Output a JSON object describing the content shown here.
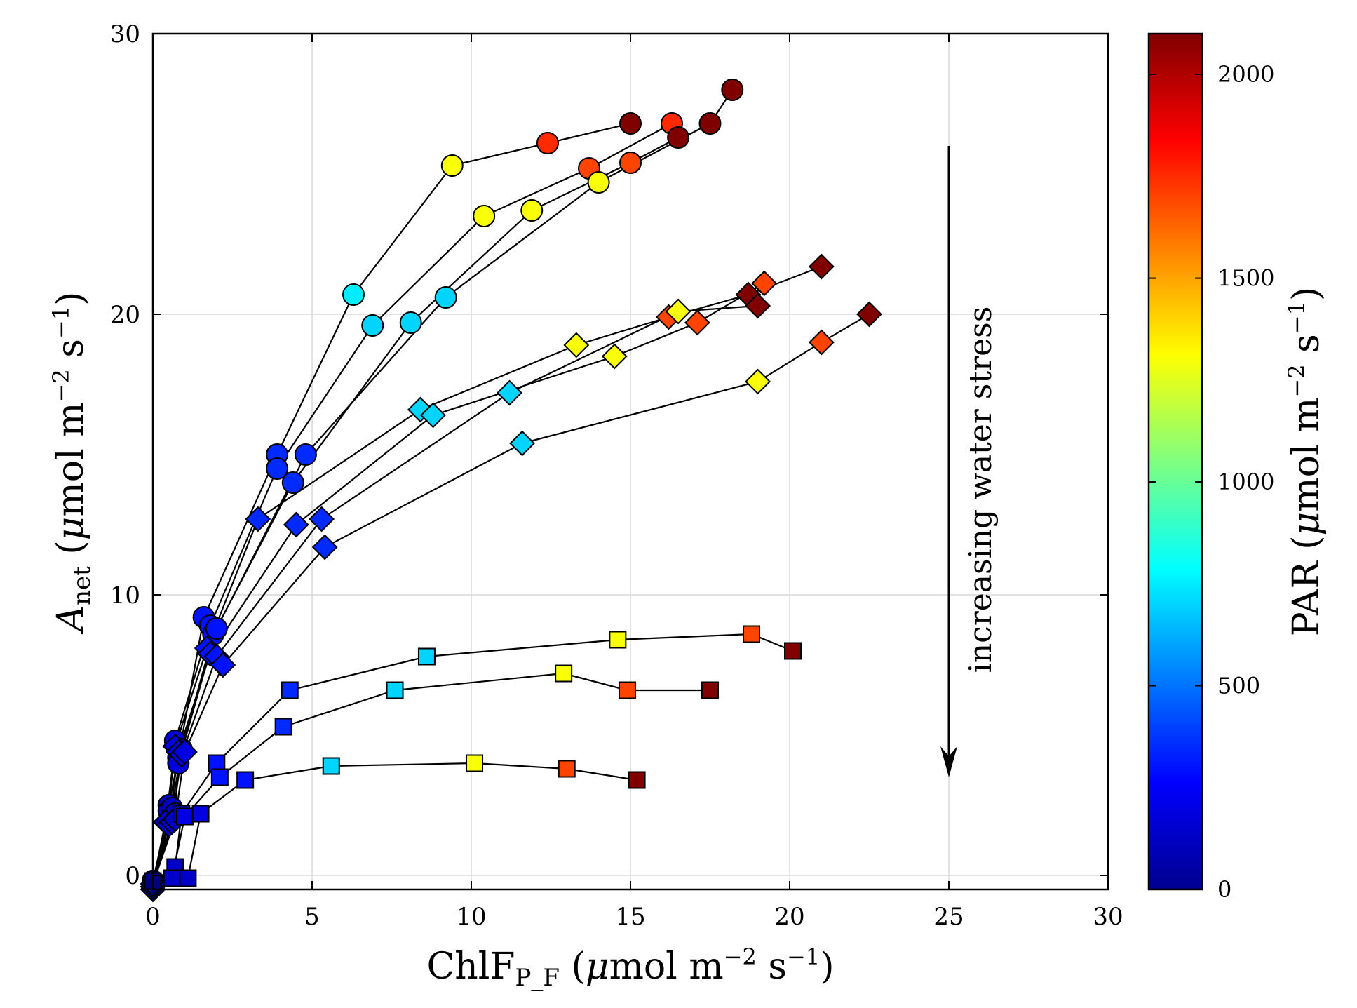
{
  "chart_data": {
    "type": "scatter",
    "xlabel_main": "ChlF",
    "xlabel_sub": "P_F",
    "ylabel_main": "A",
    "ylabel_sub": "net",
    "unit_mu": "μ",
    "unit_mol": "mol m",
    "unit_exp1": "−2",
    "unit_s": " s",
    "unit_exp2": "−1",
    "xlim": [
      0,
      30
    ],
    "ylim": [
      -0.5,
      30
    ],
    "xticks": [
      "0",
      "5",
      "10",
      "15",
      "20",
      "25",
      "30"
    ],
    "yticks": [
      "0",
      "10",
      "20",
      "30"
    ],
    "grid": true,
    "annotation": "increasing water stress",
    "annotation_arrow": {
      "x": 25,
      "from_y": 26,
      "to_y": 3.5
    },
    "colorbar": {
      "label_main": "PAR",
      "range": [
        0,
        2100
      ],
      "ticks": [
        "0",
        "500",
        "1000",
        "1500",
        "2000"
      ],
      "colormap": "jet"
    },
    "series": [
      {
        "marker": "circle",
        "points": [
          [
            0,
            -0.3,
            0
          ],
          [
            0.5,
            2.5,
            150
          ],
          [
            0.8,
            4.2,
            200
          ],
          [
            1.6,
            9.2,
            300
          ],
          [
            3.9,
            15.0,
            350
          ],
          [
            6.3,
            20.7,
            750
          ],
          [
            9.4,
            25.3,
            1300
          ],
          [
            12.4,
            26.1,
            1750
          ],
          [
            15.0,
            26.8,
            2100
          ]
        ]
      },
      {
        "marker": "circle",
        "points": [
          [
            0,
            -0.2,
            0
          ],
          [
            0.5,
            2.3,
            150
          ],
          [
            0.7,
            4.8,
            200
          ],
          [
            1.8,
            8.9,
            300
          ],
          [
            3.9,
            14.5,
            350
          ],
          [
            6.9,
            19.6,
            700
          ],
          [
            10.4,
            23.5,
            1300
          ],
          [
            13.7,
            25.2,
            1700
          ],
          [
            16.3,
            26.8,
            1750
          ]
        ]
      },
      {
        "marker": "circle",
        "points": [
          [
            0,
            -0.2,
            0
          ],
          [
            0.6,
            2.4,
            150
          ],
          [
            0.9,
            4.5,
            200
          ],
          [
            1.9,
            8.6,
            300
          ],
          [
            4.4,
            14.0,
            350
          ],
          [
            8.1,
            19.7,
            700
          ],
          [
            11.9,
            23.7,
            1300
          ],
          [
            15.0,
            25.4,
            1700
          ],
          [
            16.5,
            26.3,
            2100
          ]
        ]
      },
      {
        "marker": "circle",
        "points": [
          [
            0,
            -0.2,
            0
          ],
          [
            0.7,
            2.2,
            150
          ],
          [
            0.8,
            4.0,
            200
          ],
          [
            2.0,
            8.8,
            300
          ],
          [
            4.8,
            15.0,
            350
          ],
          [
            9.2,
            20.6,
            700
          ],
          [
            14.0,
            24.7,
            1300
          ],
          [
            17.5,
            26.8,
            2100
          ],
          [
            18.2,
            28.0,
            2100
          ]
        ]
      },
      {
        "marker": "diamond",
        "points": [
          [
            0,
            -0.5,
            0
          ],
          [
            0.4,
            1.9,
            150
          ],
          [
            0.7,
            4.6,
            200
          ],
          [
            1.7,
            8.1,
            300
          ],
          [
            3.3,
            12.7,
            350
          ],
          [
            8.4,
            16.6,
            700
          ],
          [
            13.3,
            18.9,
            1300
          ],
          [
            16.2,
            19.9,
            1700
          ],
          [
            18.7,
            20.7,
            2100
          ],
          [
            21.0,
            21.7,
            2100
          ]
        ]
      },
      {
        "marker": "diamond",
        "points": [
          [
            0,
            -0.4,
            0
          ],
          [
            0.5,
            1.8,
            150
          ],
          [
            0.8,
            4.4,
            200
          ],
          [
            1.8,
            7.9,
            300
          ],
          [
            4.5,
            12.5,
            350
          ],
          [
            8.8,
            16.4,
            700
          ],
          [
            14.5,
            18.5,
            1300
          ],
          [
            17.1,
            19.7,
            1700
          ],
          [
            19.2,
            21.1,
            1700
          ]
        ]
      },
      {
        "marker": "diamond",
        "points": [
          [
            0,
            -0.4,
            0
          ],
          [
            0.6,
            1.9,
            150
          ],
          [
            0.9,
            4.3,
            200
          ],
          [
            2.0,
            7.8,
            300
          ],
          [
            5.3,
            12.7,
            350
          ],
          [
            11.2,
            17.2,
            700
          ],
          [
            16.5,
            20.1,
            1300
          ],
          [
            19.0,
            20.3,
            2100
          ]
        ]
      },
      {
        "marker": "diamond",
        "points": [
          [
            0,
            -0.3,
            0
          ],
          [
            0.7,
            2.0,
            150
          ],
          [
            1.0,
            4.4,
            200
          ],
          [
            2.2,
            7.5,
            300
          ],
          [
            5.4,
            11.7,
            350
          ],
          [
            11.6,
            15.4,
            700
          ],
          [
            19.0,
            17.6,
            1300
          ],
          [
            21.0,
            19.0,
            1700
          ],
          [
            22.5,
            20.0,
            2100
          ]
        ]
      },
      {
        "marker": "square",
        "points": [
          [
            0,
            -0.2,
            0
          ],
          [
            0.7,
            0.3,
            150
          ],
          [
            0.9,
            2.2,
            200
          ],
          [
            2.0,
            4.0,
            300
          ],
          [
            4.3,
            6.6,
            350
          ],
          [
            8.6,
            7.8,
            700
          ],
          [
            14.6,
            8.4,
            1300
          ],
          [
            18.8,
            8.6,
            1700
          ],
          [
            20.1,
            8.0,
            2100
          ]
        ]
      },
      {
        "marker": "square",
        "points": [
          [
            0,
            -0.2,
            0
          ],
          [
            0.6,
            -0.1,
            150
          ],
          [
            1.0,
            2.1,
            200
          ],
          [
            2.1,
            3.5,
            300
          ],
          [
            4.1,
            5.3,
            350
          ],
          [
            7.6,
            6.6,
            700
          ],
          [
            12.9,
            7.2,
            1300
          ],
          [
            14.9,
            6.6,
            1700
          ],
          [
            17.5,
            6.6,
            2100
          ]
        ]
      },
      {
        "marker": "square",
        "points": [
          [
            0,
            -0.2,
            0
          ],
          [
            1.1,
            -0.1,
            150
          ],
          [
            1.5,
            2.2,
            200
          ],
          [
            2.9,
            3.4,
            300
          ],
          [
            5.6,
            3.9,
            700
          ],
          [
            10.1,
            4.0,
            1300
          ],
          [
            13.0,
            3.8,
            1700
          ],
          [
            15.2,
            3.4,
            2100
          ]
        ]
      }
    ]
  }
}
